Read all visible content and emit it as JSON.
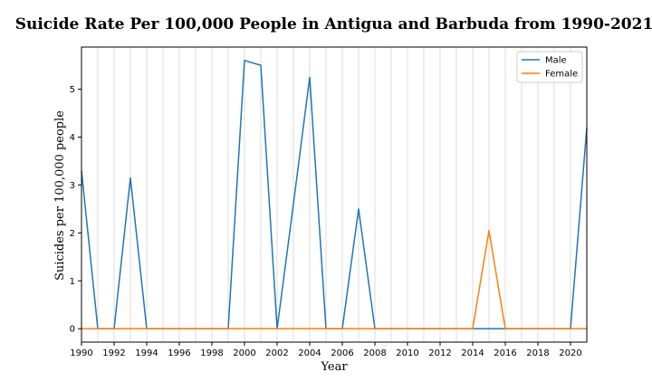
{
  "chart_data": {
    "type": "line",
    "title": "Suicide Rate Per 100,000 People in Antigua and Barbuda from 1990-2021",
    "xlabel": "Year",
    "ylabel": "Suicides per 100,000 people",
    "xlim": [
      1990,
      2021
    ],
    "ylim": [
      -0.28,
      5.88
    ],
    "x_ticks": [
      1990,
      1992,
      1994,
      1996,
      1998,
      2000,
      2002,
      2004,
      2006,
      2008,
      2010,
      2012,
      2014,
      2016,
      2018,
      2020
    ],
    "y_ticks": [
      0,
      1,
      2,
      3,
      4,
      5
    ],
    "grid": "vertical",
    "legend_position": "top-right",
    "x": [
      1990,
      1991,
      1992,
      1993,
      1994,
      1995,
      1996,
      1997,
      1998,
      1999,
      2000,
      2001,
      2002,
      2003,
      2004,
      2005,
      2006,
      2007,
      2008,
      2009,
      2010,
      2011,
      2012,
      2013,
      2014,
      2015,
      2016,
      2017,
      2018,
      2019,
      2020,
      2021
    ],
    "series": [
      {
        "name": "Male",
        "color": "#1f77b4",
        "values": [
          3.3,
          0,
          0,
          3.15,
          0,
          0,
          0,
          0,
          0,
          0,
          5.6,
          5.5,
          0,
          2.6,
          5.25,
          0,
          0,
          2.5,
          0,
          0,
          0,
          0,
          0,
          0,
          0,
          0,
          0,
          0,
          0,
          0,
          0,
          4.2
        ]
      },
      {
        "name": "Female",
        "color": "#ff7f0e",
        "values": [
          0,
          0,
          0,
          0,
          0,
          0,
          0,
          0,
          0,
          0,
          0,
          0,
          0,
          0,
          0,
          0,
          0,
          0,
          0,
          0,
          0,
          0,
          0,
          0,
          0,
          2.05,
          0,
          0,
          0,
          0,
          0,
          0
        ]
      }
    ]
  }
}
